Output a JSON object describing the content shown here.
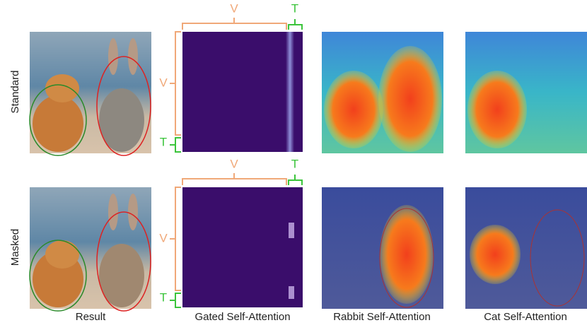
{
  "rows": [
    {
      "label": "Standard"
    },
    {
      "label": "Masked"
    }
  ],
  "columns": [
    "Result",
    "Gated Self-Attention",
    "Rabbit Self-Attention",
    "Cat Self-Attention"
  ],
  "brackets": {
    "v": "V",
    "t": "T"
  }
}
